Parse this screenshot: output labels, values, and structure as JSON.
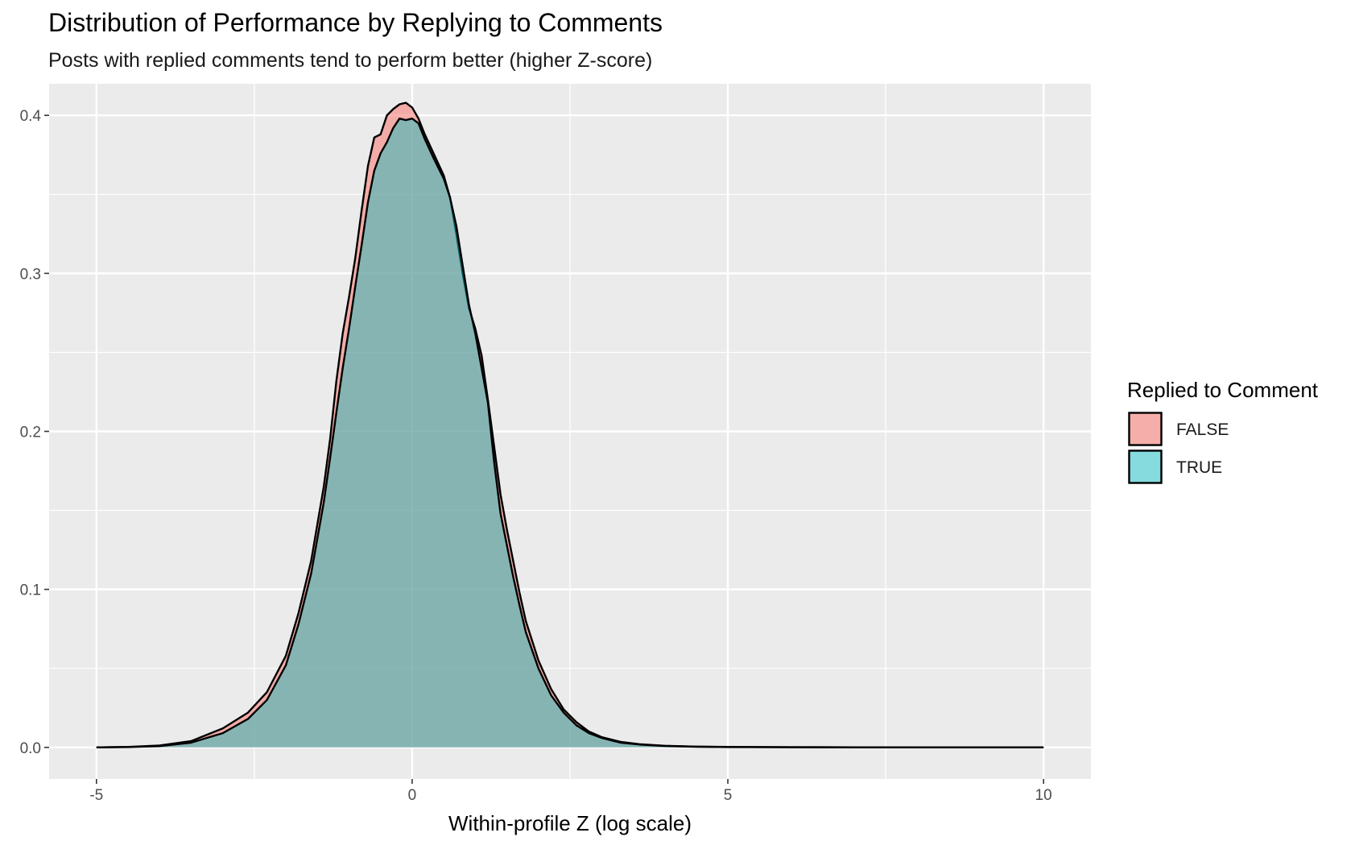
{
  "chart_data": {
    "type": "area",
    "subtype": "density",
    "title": "Distribution of Performance by Replying to Comments",
    "subtitle": "Posts with replied comments tend to perform better (higher Z-score)",
    "xlabel": "Within-profile Z (log scale)",
    "ylabel": "",
    "xlim": [
      -5.75,
      10.75
    ],
    "ylim": [
      -0.02,
      0.42
    ],
    "x_ticks": [
      -5,
      0,
      5,
      10
    ],
    "x_tick_labels": [
      "-5",
      "0",
      "5",
      "10"
    ],
    "y_ticks": [
      0.0,
      0.1,
      0.2,
      0.3,
      0.4
    ],
    "y_tick_labels": [
      "0.0",
      "0.1",
      "0.2",
      "0.3",
      "0.4"
    ],
    "grid": true,
    "legend": {
      "title": "Replied to Comment",
      "position": "right"
    },
    "series": [
      {
        "name": "FALSE",
        "color": "#F8766D",
        "fill_opacity": 0.55,
        "points": [
          [
            -5,
            0.0
          ],
          [
            -4.5,
            0.0003
          ],
          [
            -4,
            0.0012
          ],
          [
            -3.5,
            0.004
          ],
          [
            -3,
            0.012
          ],
          [
            -2.6,
            0.022
          ],
          [
            -2.3,
            0.035
          ],
          [
            -2.0,
            0.058
          ],
          [
            -1.8,
            0.085
          ],
          [
            -1.6,
            0.118
          ],
          [
            -1.4,
            0.165
          ],
          [
            -1.3,
            0.195
          ],
          [
            -1.2,
            0.232
          ],
          [
            -1.1,
            0.262
          ],
          [
            -1.0,
            0.285
          ],
          [
            -0.9,
            0.31
          ],
          [
            -0.8,
            0.34
          ],
          [
            -0.7,
            0.368
          ],
          [
            -0.6,
            0.386
          ],
          [
            -0.5,
            0.388
          ],
          [
            -0.4,
            0.4
          ],
          [
            -0.3,
            0.404
          ],
          [
            -0.2,
            0.407
          ],
          [
            -0.1,
            0.408
          ],
          [
            0.0,
            0.405
          ],
          [
            0.1,
            0.398
          ],
          [
            0.2,
            0.388
          ],
          [
            0.35,
            0.375
          ],
          [
            0.5,
            0.362
          ],
          [
            0.6,
            0.348
          ],
          [
            0.7,
            0.325
          ],
          [
            0.8,
            0.3
          ],
          [
            0.9,
            0.278
          ],
          [
            1.0,
            0.265
          ],
          [
            1.1,
            0.248
          ],
          [
            1.2,
            0.22
          ],
          [
            1.3,
            0.19
          ],
          [
            1.4,
            0.16
          ],
          [
            1.5,
            0.138
          ],
          [
            1.6,
            0.118
          ],
          [
            1.7,
            0.098
          ],
          [
            1.8,
            0.08
          ],
          [
            2.0,
            0.055
          ],
          [
            2.2,
            0.037
          ],
          [
            2.4,
            0.024
          ],
          [
            2.6,
            0.016
          ],
          [
            2.8,
            0.01
          ],
          [
            3.0,
            0.0065
          ],
          [
            3.3,
            0.0035
          ],
          [
            3.6,
            0.002
          ],
          [
            4.0,
            0.001
          ],
          [
            4.5,
            0.0005
          ],
          [
            5.0,
            0.0003
          ],
          [
            6.0,
            0.0001
          ],
          [
            7.0,
            5e-05
          ],
          [
            8.0,
            0.0
          ],
          [
            9.0,
            0.0
          ],
          [
            10.0,
            0.0
          ]
        ]
      },
      {
        "name": "TRUE",
        "color": "#00BFC4",
        "fill_opacity": 0.45,
        "points": [
          [
            -5,
            0.0
          ],
          [
            -4.5,
            0.0002
          ],
          [
            -4,
            0.0008
          ],
          [
            -3.5,
            0.003
          ],
          [
            -3,
            0.009
          ],
          [
            -2.6,
            0.018
          ],
          [
            -2.3,
            0.03
          ],
          [
            -2.0,
            0.052
          ],
          [
            -1.8,
            0.078
          ],
          [
            -1.6,
            0.11
          ],
          [
            -1.4,
            0.155
          ],
          [
            -1.3,
            0.183
          ],
          [
            -1.2,
            0.212
          ],
          [
            -1.1,
            0.24
          ],
          [
            -1.0,
            0.265
          ],
          [
            -0.9,
            0.292
          ],
          [
            -0.8,
            0.318
          ],
          [
            -0.7,
            0.345
          ],
          [
            -0.6,
            0.365
          ],
          [
            -0.5,
            0.376
          ],
          [
            -0.4,
            0.383
          ],
          [
            -0.3,
            0.392
          ],
          [
            -0.2,
            0.398
          ],
          [
            -0.1,
            0.397
          ],
          [
            0.0,
            0.398
          ],
          [
            0.1,
            0.395
          ],
          [
            0.2,
            0.385
          ],
          [
            0.35,
            0.372
          ],
          [
            0.5,
            0.36
          ],
          [
            0.6,
            0.348
          ],
          [
            0.7,
            0.33
          ],
          [
            0.8,
            0.305
          ],
          [
            0.9,
            0.28
          ],
          [
            1.0,
            0.262
          ],
          [
            1.1,
            0.24
          ],
          [
            1.2,
            0.218
          ],
          [
            1.3,
            0.18
          ],
          [
            1.4,
            0.148
          ],
          [
            1.5,
            0.128
          ],
          [
            1.6,
            0.108
          ],
          [
            1.7,
            0.09
          ],
          [
            1.8,
            0.073
          ],
          [
            2.0,
            0.05
          ],
          [
            2.2,
            0.033
          ],
          [
            2.4,
            0.022
          ],
          [
            2.6,
            0.014
          ],
          [
            2.8,
            0.009
          ],
          [
            3.0,
            0.006
          ],
          [
            3.3,
            0.003
          ],
          [
            3.6,
            0.0018
          ],
          [
            4.0,
            0.0009
          ],
          [
            4.5,
            0.0004
          ],
          [
            5.0,
            0.0002
          ],
          [
            6.0,
            0.0001
          ],
          [
            7.0,
            5e-05
          ],
          [
            8.0,
            0.0
          ],
          [
            9.0,
            0.0
          ],
          [
            10.0,
            0.0
          ]
        ]
      }
    ]
  }
}
